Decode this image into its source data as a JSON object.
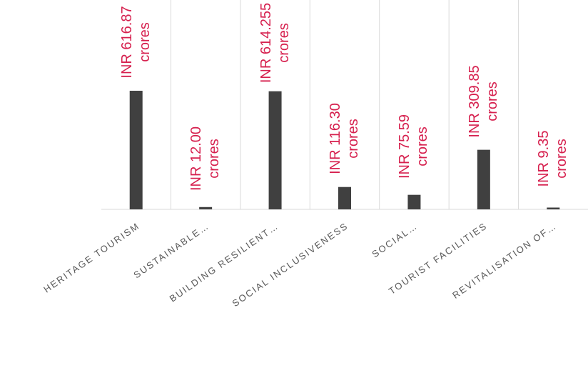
{
  "chart_data": {
    "type": "bar",
    "categories": [
      "HERITAGE TOURISM",
      "SUSTAINABLE…",
      "BUILDING RESILIENT…",
      "SOCIAL INCLUSIVENESS",
      "SOCIAL…",
      "TOURIST FACILITIES",
      "REVITALISATION OF…"
    ],
    "values": [
      616.87,
      12.0,
      614.255,
      116.3,
      75.59,
      309.85,
      9.35
    ],
    "value_labels": [
      "INR 616.87 crores",
      "INR 12.00 crores",
      "INR 614.255 crores",
      "INR 116.30 crores",
      "INR 75.59 crores",
      "INR 309.85 crores",
      "INR 9.35 crores"
    ],
    "color": "#404040",
    "label_color": "#d6204e"
  }
}
